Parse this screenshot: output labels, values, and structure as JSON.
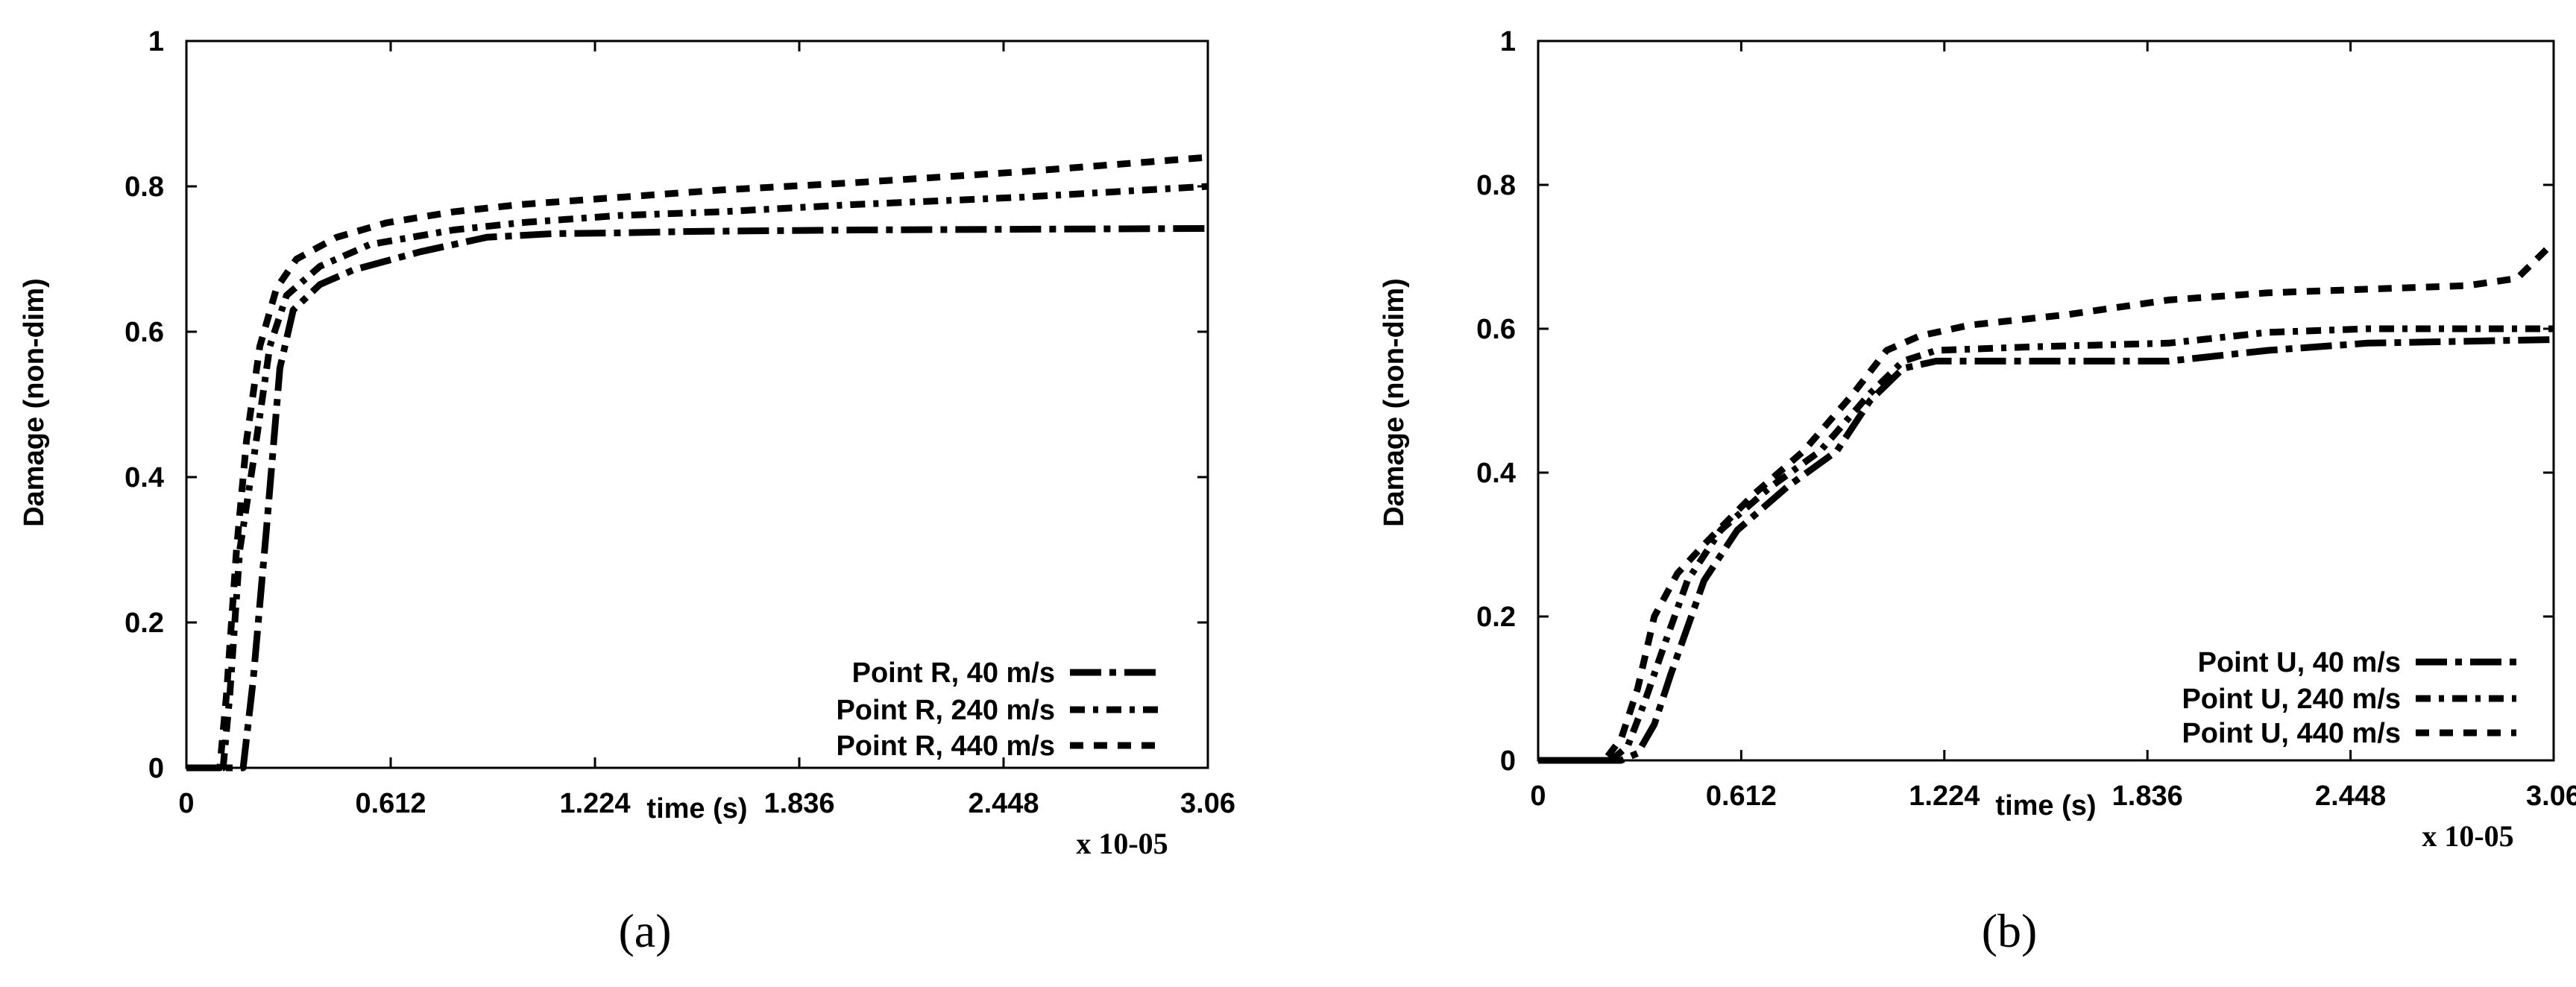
{
  "chart_data": [
    {
      "type": "line",
      "panel_caption": "(a)",
      "xlabel": "time (s)",
      "ylabel": "Damage (non-dim)",
      "x_multiplier": "x 10-05",
      "xlim": [
        0,
        3.06
      ],
      "ylim": [
        0,
        1
      ],
      "xticks": [
        "0",
        "0.612",
        "1.224",
        "1.836",
        "2.448",
        "3.06"
      ],
      "xtick_values": [
        0,
        0.612,
        1.224,
        1.836,
        2.448,
        3.06
      ],
      "yticks": [
        "0",
        "0.2",
        "0.4",
        "0.6",
        "0.8",
        "1"
      ],
      "ytick_values": [
        0,
        0.2,
        0.4,
        0.6,
        0.8,
        1.0
      ],
      "grid": false,
      "legend_position": "bottom-right",
      "series": [
        {
          "name": "Point R, 40 m/s",
          "style": "dash-dot-long",
          "x": [
            0,
            0.15,
            0.17,
            0.2,
            0.24,
            0.28,
            0.32,
            0.4,
            0.5,
            0.7,
            0.9,
            1.1,
            1.3,
            1.5,
            2.0,
            2.5,
            3.06
          ],
          "y": [
            0,
            0,
            0,
            0.12,
            0.33,
            0.55,
            0.63,
            0.665,
            0.685,
            0.71,
            0.73,
            0.735,
            0.736,
            0.738,
            0.74,
            0.741,
            0.742
          ]
        },
        {
          "name": "Point R, 240 m/s",
          "style": "dash-dot",
          "x": [
            0,
            0.11,
            0.13,
            0.16,
            0.2,
            0.25,
            0.3,
            0.4,
            0.55,
            0.8,
            1.0,
            1.3,
            1.6,
            2.0,
            2.5,
            3.06
          ],
          "y": [
            0,
            0,
            0.1,
            0.3,
            0.42,
            0.58,
            0.65,
            0.69,
            0.72,
            0.74,
            0.75,
            0.76,
            0.765,
            0.775,
            0.785,
            0.8
          ]
        },
        {
          "name": "Point R, 440 m/s",
          "style": "dash",
          "x": [
            0,
            0.1,
            0.12,
            0.15,
            0.18,
            0.22,
            0.27,
            0.33,
            0.45,
            0.6,
            0.8,
            1.0,
            1.3,
            1.6,
            2.0,
            2.5,
            3.06
          ],
          "y": [
            0,
            0,
            0.1,
            0.3,
            0.45,
            0.58,
            0.66,
            0.7,
            0.73,
            0.75,
            0.765,
            0.775,
            0.785,
            0.795,
            0.805,
            0.82,
            0.84
          ]
        }
      ]
    },
    {
      "type": "line",
      "panel_caption": "(b)",
      "xlabel": "time (s)",
      "ylabel": "Damage (non-dim)",
      "x_multiplier": "x 10-05",
      "xlim": [
        0,
        3.06
      ],
      "ylim": [
        0,
        1
      ],
      "xticks": [
        "0",
        "0.612",
        "1.224",
        "1.836",
        "2.448",
        "3.06"
      ],
      "xtick_values": [
        0,
        0.612,
        1.224,
        1.836,
        2.448,
        3.06
      ],
      "yticks": [
        "0",
        "0.2",
        "0.4",
        "0.6",
        "0.8",
        "1"
      ],
      "ytick_values": [
        0,
        0.2,
        0.4,
        0.6,
        0.8,
        1.0
      ],
      "grid": false,
      "legend_position": "bottom-right",
      "series": [
        {
          "name": "Point U, 40 m/s",
          "style": "dash-dot-long",
          "x": [
            0,
            0.25,
            0.3,
            0.35,
            0.4,
            0.5,
            0.6,
            0.75,
            0.9,
            1.0,
            1.1,
            1.2,
            1.5,
            1.9,
            2.2,
            2.5,
            3.06
          ],
          "y": [
            0,
            0,
            0.01,
            0.05,
            0.12,
            0.25,
            0.32,
            0.38,
            0.43,
            0.5,
            0.545,
            0.555,
            0.555,
            0.555,
            0.57,
            0.58,
            0.585
          ]
        },
        {
          "name": "Point U, 240 m/s",
          "style": "dash-dot",
          "x": [
            0,
            0.22,
            0.27,
            0.32,
            0.38,
            0.45,
            0.55,
            0.7,
            0.85,
            1.0,
            1.1,
            1.2,
            1.5,
            1.9,
            2.2,
            2.5,
            3.06
          ],
          "y": [
            0,
            0,
            0.02,
            0.08,
            0.16,
            0.25,
            0.32,
            0.38,
            0.43,
            0.51,
            0.555,
            0.57,
            0.575,
            0.58,
            0.595,
            0.6,
            0.6
          ]
        },
        {
          "name": "Point U, 440 m/s",
          "style": "dash",
          "x": [
            0,
            0.2,
            0.25,
            0.3,
            0.35,
            0.42,
            0.5,
            0.65,
            0.8,
            0.95,
            1.05,
            1.15,
            1.3,
            1.6,
            1.9,
            2.2,
            2.5,
            2.8,
            2.95,
            3.06
          ],
          "y": [
            0,
            0,
            0.03,
            0.1,
            0.2,
            0.26,
            0.3,
            0.37,
            0.43,
            0.51,
            0.57,
            0.59,
            0.605,
            0.62,
            0.64,
            0.65,
            0.655,
            0.66,
            0.67,
            0.72
          ]
        }
      ]
    }
  ]
}
